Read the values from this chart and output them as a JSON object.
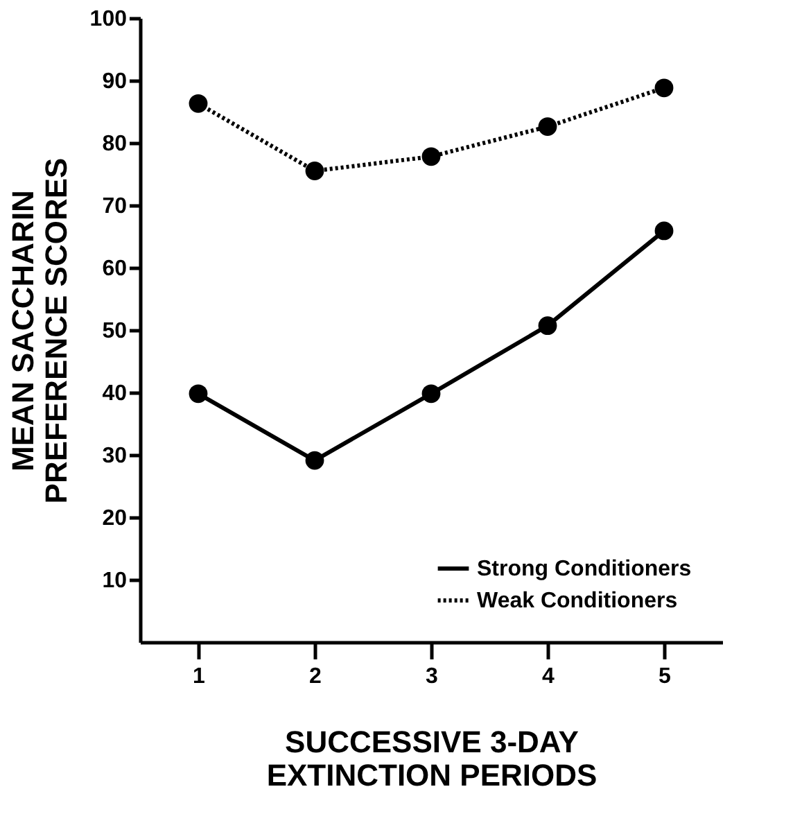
{
  "chart_data": {
    "type": "line",
    "xlabel": "SUCCESSIVE 3-DAY\nEXTINCTION PERIODS",
    "ylabel": "MEAN SACCHARIN\nPREFERENCE SCORES",
    "x": [
      1,
      2,
      3,
      4,
      5
    ],
    "series": [
      {
        "name": "Strong Conditioners",
        "color": "#000000",
        "line_style": "solid",
        "values": [
          39.8,
          29.1,
          39.8,
          50.7,
          65.9
        ]
      },
      {
        "name": "Weak Conditioners",
        "color": "#000000",
        "line_style": "dotted",
        "values": [
          86.3,
          75.5,
          77.8,
          82.6,
          88.8
        ]
      }
    ],
    "xlim": [
      0.5,
      5.5
    ],
    "xticks": [
      1,
      2,
      3,
      4,
      5
    ],
    "ylim": [
      0,
      100
    ],
    "yticks": [
      10,
      20,
      30,
      40,
      50,
      60,
      70,
      80,
      90,
      100
    ],
    "marker": "circle",
    "grid": false,
    "legend": "bottom right"
  }
}
